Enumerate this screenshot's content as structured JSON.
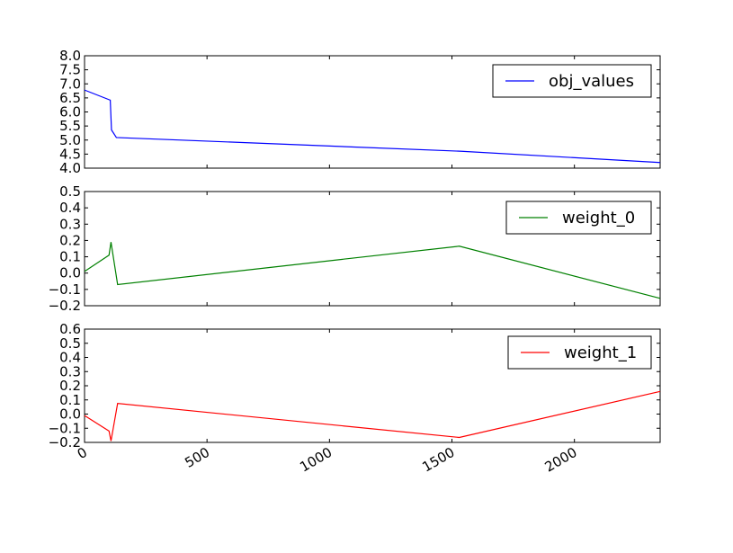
{
  "chart_data": [
    {
      "type": "line",
      "title": "",
      "xlabel": "",
      "ylabel": "",
      "xlim": [
        0,
        2350
      ],
      "ylim": [
        4.0,
        8.0
      ],
      "yticks": [
        "4.0",
        "4.5",
        "5.0",
        "5.5",
        "6.0",
        "6.5",
        "7.0",
        "7.5",
        "8.0"
      ],
      "legend_position": "top-right",
      "series": [
        {
          "name": "obj_values",
          "color": "#0000ff",
          "x": [
            0,
            105,
            110,
            130,
            1540,
            2350
          ],
          "y": [
            6.78,
            6.42,
            5.36,
            5.09,
            4.6,
            4.2
          ]
        }
      ]
    },
    {
      "type": "line",
      "title": "",
      "xlabel": "",
      "ylabel": "",
      "xlim": [
        0,
        2350
      ],
      "ylim": [
        -0.2,
        0.5
      ],
      "yticks": [
        "−0.2",
        "−0.1",
        "0.0",
        "0.1",
        "0.2",
        "0.3",
        "0.4",
        "0.5"
      ],
      "legend_position": "top-right",
      "series": [
        {
          "name": "weight_0",
          "color": "#008000",
          "x": [
            0,
            100,
            108,
            135,
            1530,
            2350
          ],
          "y": [
            0.01,
            0.11,
            0.19,
            -0.07,
            0.165,
            -0.155
          ]
        }
      ]
    },
    {
      "type": "line",
      "title": "",
      "xlabel": "",
      "ylabel": "",
      "xlim": [
        0,
        2350
      ],
      "ylim": [
        -0.2,
        0.6
      ],
      "yticks": [
        "−0.2",
        "−0.1",
        "0.0",
        "0.1",
        "0.2",
        "0.3",
        "0.4",
        "0.5",
        "0.6"
      ],
      "xticks": [
        "0",
        "500",
        "1000",
        "1500",
        "2000"
      ],
      "legend_position": "top-right",
      "series": [
        {
          "name": "weight_1",
          "color": "#ff0000",
          "x": [
            0,
            100,
            108,
            135,
            1530,
            2350
          ],
          "y": [
            -0.01,
            -0.12,
            -0.19,
            0.075,
            -0.165,
            0.16
          ]
        }
      ]
    }
  ]
}
